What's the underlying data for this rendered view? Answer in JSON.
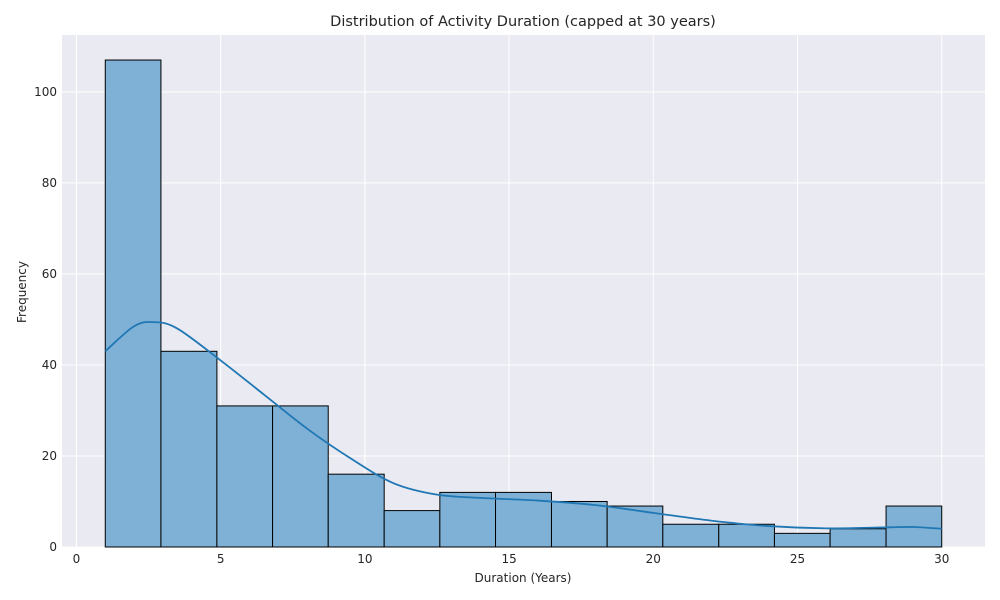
{
  "chart_data": {
    "type": "bar",
    "title": "Distribution of Activity Duration (capped at 30 years)",
    "xlabel": "Duration (Years)",
    "ylabel": "Frequency",
    "xlim": [
      -0.5,
      31.5
    ],
    "ylim": [
      0,
      112.5
    ],
    "x_ticks": [
      0,
      5,
      10,
      15,
      20,
      25,
      30
    ],
    "y_ticks": [
      0,
      20,
      40,
      60,
      80,
      100
    ],
    "grid": true,
    "bin_edges": [
      1.0,
      2.93,
      4.87,
      6.8,
      8.73,
      10.67,
      12.6,
      14.53,
      16.47,
      18.4,
      20.33,
      22.27,
      24.2,
      26.13,
      28.07,
      30.0
    ],
    "values": [
      107,
      43,
      31,
      31,
      16,
      8,
      12,
      12,
      10,
      9,
      5,
      5,
      3,
      4,
      9
    ],
    "kde": {
      "x": [
        1,
        2,
        2.7,
        3.5,
        5,
        6.5,
        8,
        9.5,
        11,
        12.5,
        14,
        16,
        18,
        20,
        22,
        24,
        26,
        28,
        29,
        30
      ],
      "y": [
        43,
        48.5,
        49.4,
        48,
        41,
        33.5,
        26,
        19.5,
        14,
        11.5,
        10.8,
        10.2,
        9.2,
        7.5,
        5.8,
        4.6,
        4.1,
        4.3,
        4.4,
        4
      ]
    },
    "colors": {
      "bar_fill": "#7fb0d5",
      "bar_edge": "#000000",
      "kde_line": "#1f77b4",
      "plot_bg": "#eaeaf2",
      "grid": "#ffffff"
    }
  }
}
